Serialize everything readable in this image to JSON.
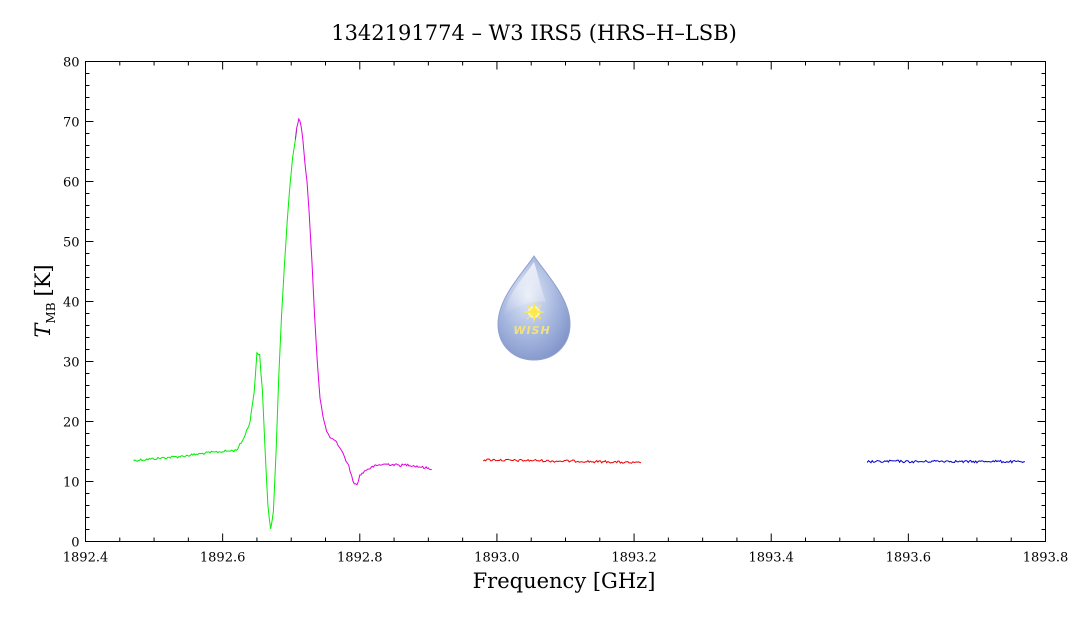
{
  "chart_data": {
    "type": "line",
    "title": "1342191774 – W3 IRS5 (HRS–H–LSB)",
    "xlabel": "Frequency [GHz]",
    "ylabel_main": "T",
    "ylabel_sub": "MB",
    "ylabel_unit": "[K]",
    "xlim": [
      1892.4,
      1893.8
    ],
    "ylim": [
      0,
      80
    ],
    "x_ticks": [
      1892.4,
      1892.6,
      1892.8,
      1893.0,
      1893.2,
      1893.4,
      1893.6,
      1893.8
    ],
    "x_tick_labels": [
      "1892.4",
      "1892.6",
      "1892.8",
      "1893.0",
      "1893.2",
      "1893.4",
      "1893.6",
      "1893.8"
    ],
    "y_ticks": [
      0,
      10,
      20,
      30,
      40,
      50,
      60,
      70,
      80
    ],
    "y_tick_labels": [
      "0",
      "10",
      "20",
      "30",
      "40",
      "50",
      "60",
      "70",
      "80"
    ],
    "grid": false,
    "legend": "none",
    "series": [
      {
        "color": "#00ee00",
        "x": [
          1892.47,
          1892.5,
          1892.52,
          1892.54,
          1892.56,
          1892.58,
          1892.6,
          1892.62,
          1892.63,
          1892.64,
          1892.646,
          1892.65,
          1892.654,
          1892.658,
          1892.662,
          1892.666,
          1892.67,
          1892.674,
          1892.678,
          1892.682,
          1892.686,
          1892.69,
          1892.694,
          1892.698,
          1892.702,
          1892.706,
          1892.708
        ],
        "y": [
          13.5,
          13.8,
          14.0,
          14.2,
          14.5,
          14.8,
          15.0,
          15.2,
          17.0,
          20.0,
          25.0,
          31.5,
          31.0,
          25.0,
          15.0,
          6.0,
          2.0,
          5.0,
          15.0,
          28.0,
          38.0,
          46.0,
          53.0,
          59.0,
          64.0,
          67.0,
          68.5
        ]
      },
      {
        "color": "#e000e0",
        "x": [
          1892.706,
          1892.708,
          1892.711,
          1892.714,
          1892.717,
          1892.72,
          1892.723,
          1892.726,
          1892.73,
          1892.734,
          1892.738,
          1892.742,
          1892.746,
          1892.75,
          1892.755,
          1892.76,
          1892.766,
          1892.772,
          1892.778,
          1892.784,
          1892.788,
          1892.792,
          1892.796,
          1892.8,
          1892.805,
          1892.81,
          1892.815,
          1892.82,
          1892.83,
          1892.84,
          1892.85,
          1892.86,
          1892.87,
          1892.88,
          1892.89,
          1892.9,
          1892.905
        ],
        "y": [
          67.0,
          69.0,
          70.5,
          69.5,
          67.0,
          63.0,
          60.0,
          55.0,
          47.0,
          38.0,
          30.0,
          24.0,
          21.0,
          19.0,
          17.5,
          17.0,
          16.5,
          15.5,
          14.0,
          12.5,
          11.0,
          9.5,
          9.5,
          11.0,
          11.5,
          12.0,
          12.2,
          12.5,
          12.8,
          12.9,
          12.8,
          12.7,
          12.8,
          12.6,
          12.4,
          12.2,
          12.0
        ]
      },
      {
        "color": "#ee0000",
        "x": [
          1892.98,
          1893.0,
          1893.02,
          1893.04,
          1893.06,
          1893.08,
          1893.1,
          1893.12,
          1893.14,
          1893.16,
          1893.18,
          1893.2,
          1893.21
        ],
        "y": [
          13.6,
          13.6,
          13.5,
          13.5,
          13.5,
          13.4,
          13.4,
          13.4,
          13.3,
          13.3,
          13.2,
          13.1,
          13.1
        ]
      },
      {
        "color": "#0000cc",
        "x": [
          1893.54,
          1893.56,
          1893.58,
          1893.6,
          1893.62,
          1893.64,
          1893.66,
          1893.68,
          1893.7,
          1893.72,
          1893.74,
          1893.76,
          1893.77
        ],
        "y": [
          13.3,
          13.3,
          13.4,
          13.3,
          13.3,
          13.4,
          13.4,
          13.3,
          13.3,
          13.4,
          13.3,
          13.3,
          13.3
        ]
      }
    ],
    "logo": {
      "text": "WISH"
    }
  }
}
